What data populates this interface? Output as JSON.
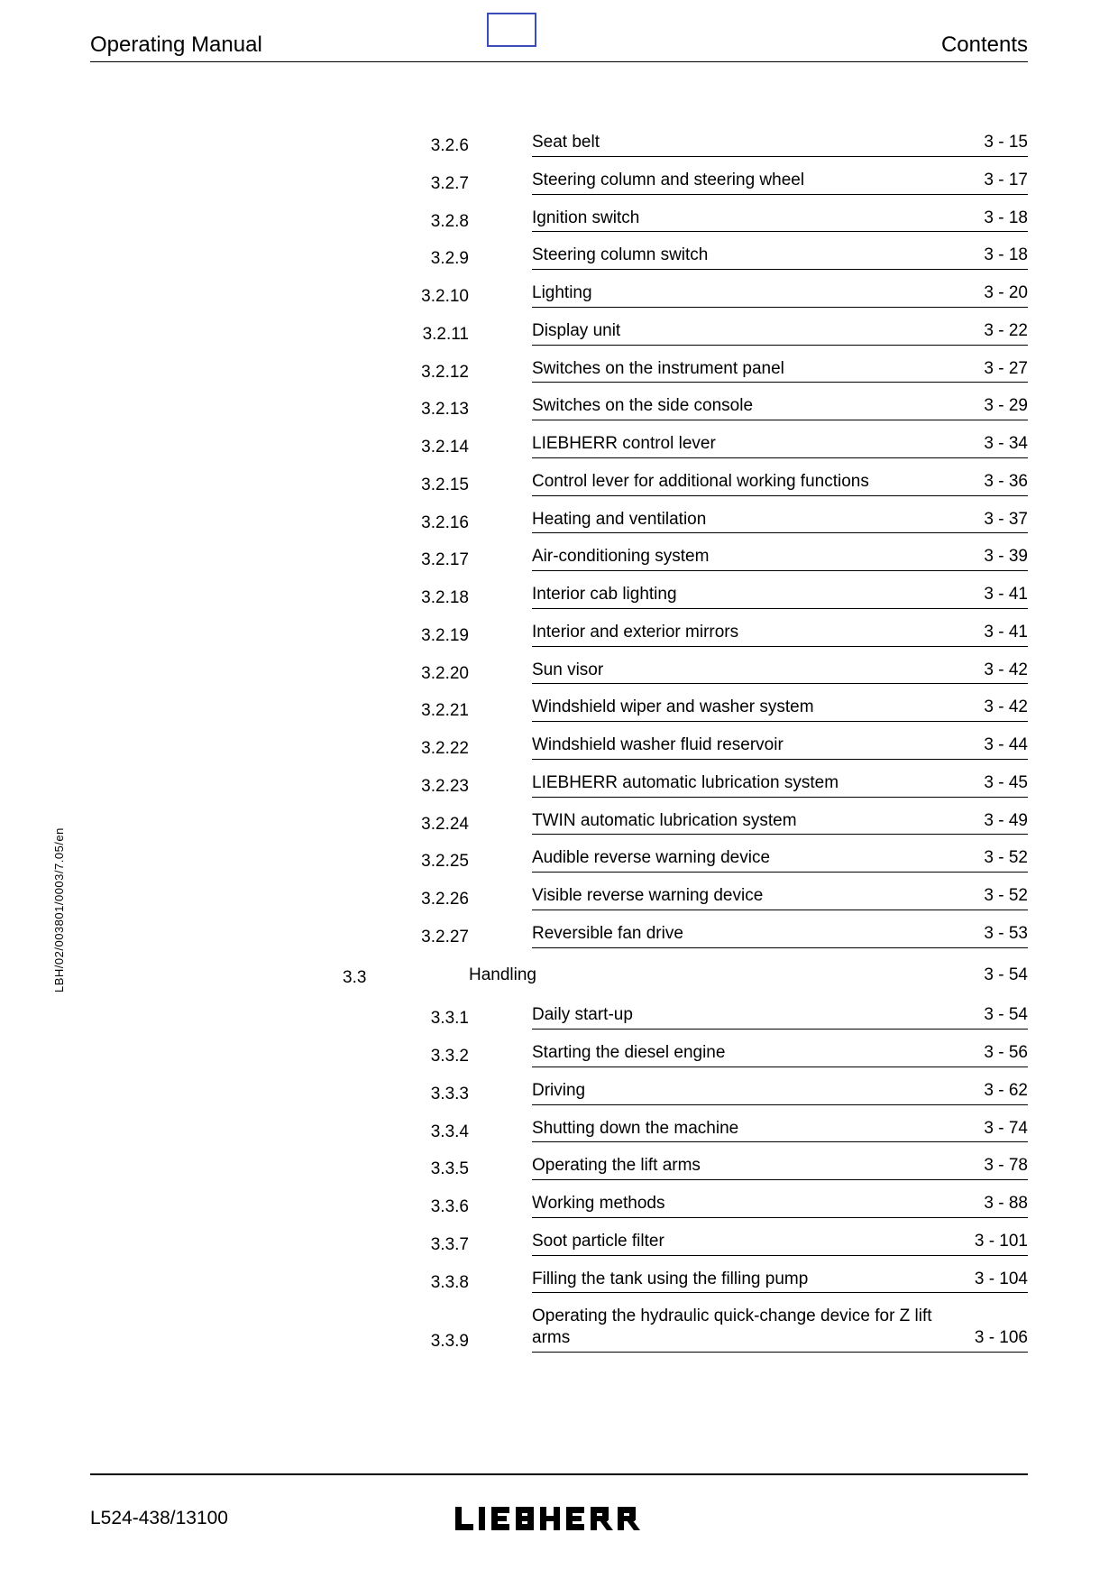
{
  "header": {
    "left": "Operating Manual",
    "right": "Contents"
  },
  "side_text": "LBH/02/003801/0003/7.05/en",
  "footer": {
    "docno": "L524-438/13100",
    "brand": "LIEBHERR"
  },
  "toc": [
    {
      "level": "sub",
      "num": "3.2.6",
      "title": "Seat belt",
      "page": "3 - 15"
    },
    {
      "level": "sub",
      "num": "3.2.7",
      "title": "Steering column and steering wheel",
      "page": "3 - 17"
    },
    {
      "level": "sub",
      "num": "3.2.8",
      "title": "Ignition switch",
      "page": "3 - 18"
    },
    {
      "level": "sub",
      "num": "3.2.9",
      "title": "Steering column switch",
      "page": "3 - 18"
    },
    {
      "level": "sub",
      "num": "3.2.10",
      "title": "Lighting",
      "page": "3 - 20"
    },
    {
      "level": "sub",
      "num": "3.2.11",
      "title": "Display unit",
      "page": "3 - 22"
    },
    {
      "level": "sub",
      "num": "3.2.12",
      "title": "Switches on the instrument panel",
      "page": "3 - 27"
    },
    {
      "level": "sub",
      "num": "3.2.13",
      "title": "Switches on the side console",
      "page": "3 - 29"
    },
    {
      "level": "sub",
      "num": "3.2.14",
      "title": "LIEBHERR control lever",
      "page": "3 - 34"
    },
    {
      "level": "sub",
      "num": "3.2.15",
      "title": "Control lever for additional working func­tions",
      "page": "3 - 36"
    },
    {
      "level": "sub",
      "num": "3.2.16",
      "title": "Heating and ventilation",
      "page": "3 - 37"
    },
    {
      "level": "sub",
      "num": "3.2.17",
      "title": "Air-conditioning system",
      "page": "3 - 39"
    },
    {
      "level": "sub",
      "num": "3.2.18",
      "title": "Interior cab lighting",
      "page": "3 - 41"
    },
    {
      "level": "sub",
      "num": "3.2.19",
      "title": "Interior and exterior mirrors",
      "page": "3 - 41"
    },
    {
      "level": "sub",
      "num": "3.2.20",
      "title": "Sun visor",
      "page": "3 - 42"
    },
    {
      "level": "sub",
      "num": "3.2.21",
      "title": "Windshield wiper and washer system",
      "page": "3 - 42"
    },
    {
      "level": "sub",
      "num": "3.2.22",
      "title": "Windshield washer fluid reservoir",
      "page": "3 - 44"
    },
    {
      "level": "sub",
      "num": "3.2.23",
      "title": "LIEBHERR automatic lubrication system",
      "page": "3 - 45"
    },
    {
      "level": "sub",
      "num": "3.2.24",
      "title": "TWIN automatic lubrication system",
      "page": "3 - 49"
    },
    {
      "level": "sub",
      "num": "3.2.25",
      "title": "Audible reverse warning device",
      "page": "3 - 52"
    },
    {
      "level": "sub",
      "num": "3.2.26",
      "title": "Visible reverse warning device",
      "page": "3 - 52"
    },
    {
      "level": "sub",
      "num": "3.2.27",
      "title": "Reversible fan drive",
      "page": "3 - 53"
    },
    {
      "level": "sec",
      "num": "3.3",
      "title": "Handling",
      "page": "3 - 54"
    },
    {
      "level": "sub",
      "num": "3.3.1",
      "title": "Daily start-up",
      "page": "3 - 54"
    },
    {
      "level": "sub",
      "num": "3.3.2",
      "title": "Starting the diesel engine",
      "page": "3 - 56"
    },
    {
      "level": "sub",
      "num": "3.3.3",
      "title": "Driving",
      "page": "3 - 62"
    },
    {
      "level": "sub",
      "num": "3.3.4",
      "title": "Shutting down the machine",
      "page": "3 - 74"
    },
    {
      "level": "sub",
      "num": "3.3.5",
      "title": "Operating the lift arms",
      "page": "3 - 78"
    },
    {
      "level": "sub",
      "num": "3.3.6",
      "title": "Working methods",
      "page": "3 - 88"
    },
    {
      "level": "sub",
      "num": "3.3.7",
      "title": "Soot particle filter",
      "page": "3 - 101"
    },
    {
      "level": "sub",
      "num": "3.3.8",
      "title": "Filling the tank using the filling pump",
      "page": "3 - 104"
    },
    {
      "level": "sub",
      "num": "3.3.9",
      "title": "Operating the hydraulic quick-change de­vice for Z lift arms",
      "page": "3 - 106"
    }
  ]
}
